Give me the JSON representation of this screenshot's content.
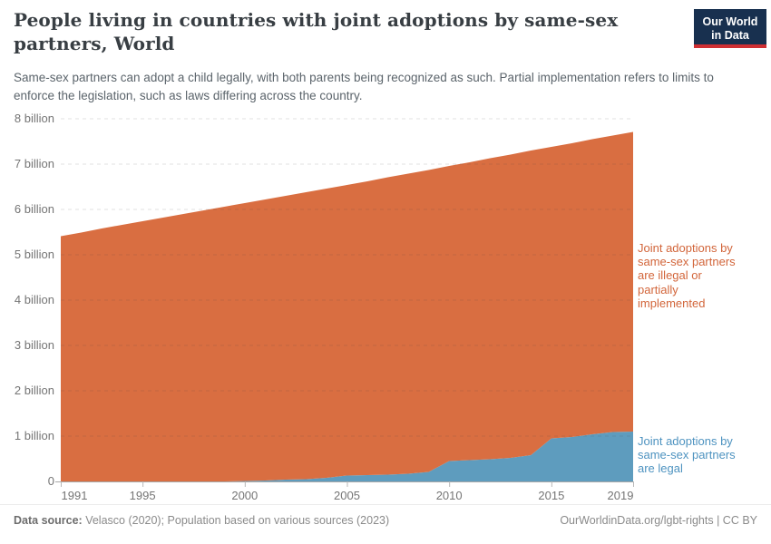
{
  "header": {
    "title": "People living in countries with joint adoptions by same-sex partners, World",
    "subtitle": "Same-sex partners can adopt a child legally, with both parents being recognized as such. Partial implementation refers to limits to enforce the legislation, such as laws differing across the country.",
    "logo": {
      "line1": "Our World",
      "line2": "in Data",
      "bg_color": "#18304f",
      "accent_color": "#cf2f33"
    }
  },
  "chart_data": {
    "type": "area",
    "stacked": true,
    "title": "People living in countries with joint adoptions by same-sex partners, World",
    "unit": "billion people",
    "grid": "horizontal dashed",
    "legend_position": "right-edge annotations",
    "x": [
      1991,
      1992,
      1993,
      1994,
      1995,
      1996,
      1997,
      1998,
      1999,
      2000,
      2001,
      2002,
      2003,
      2004,
      2005,
      2006,
      2007,
      2008,
      2009,
      2010,
      2011,
      2012,
      2013,
      2014,
      2015,
      2016,
      2017,
      2018,
      2019
    ],
    "series": [
      {
        "name": "Joint adoptions by same-sex partners are legal",
        "color": "#5e9cbe",
        "values_billions": [
          0,
          0,
          0,
          0,
          0,
          0,
          0,
          0,
          0,
          0.01,
          0.02,
          0.04,
          0.05,
          0.08,
          0.13,
          0.14,
          0.15,
          0.17,
          0.21,
          0.45,
          0.47,
          0.49,
          0.52,
          0.58,
          0.95,
          0.98,
          1.04,
          1.09,
          1.1
        ]
      },
      {
        "name": "Joint adoptions by same-sex partners are illegal or partially implemented",
        "color": "#d96e41",
        "values_billions": [
          5.41,
          5.49,
          5.58,
          5.66,
          5.74,
          5.82,
          5.9,
          5.98,
          6.06,
          6.13,
          6.2,
          6.26,
          6.33,
          6.38,
          6.41,
          6.48,
          6.56,
          6.62,
          6.66,
          6.51,
          6.57,
          6.64,
          6.69,
          6.72,
          6.43,
          6.48,
          6.51,
          6.54,
          6.61
        ]
      }
    ],
    "world_total_billions": [
      5.41,
      5.49,
      5.58,
      5.66,
      5.74,
      5.82,
      5.9,
      5.98,
      6.06,
      6.14,
      6.22,
      6.3,
      6.38,
      6.46,
      6.54,
      6.62,
      6.71,
      6.79,
      6.87,
      6.96,
      7.04,
      7.13,
      7.21,
      7.3,
      7.38,
      7.46,
      7.55,
      7.63,
      7.71
    ],
    "ylim_billions": [
      0,
      8
    ],
    "y_ticks": [
      {
        "value": 0,
        "label": "0"
      },
      {
        "value": 1,
        "label": "1 billion"
      },
      {
        "value": 2,
        "label": "2 billion"
      },
      {
        "value": 3,
        "label": "3 billion"
      },
      {
        "value": 4,
        "label": "4 billion"
      },
      {
        "value": 5,
        "label": "5 billion"
      },
      {
        "value": 6,
        "label": "6 billion"
      },
      {
        "value": 7,
        "label": "7 billion"
      },
      {
        "value": 8,
        "label": "8 billion"
      }
    ],
    "x_ticks": [
      1991,
      1995,
      2000,
      2005,
      2010,
      2015,
      2019
    ]
  },
  "annotations": {
    "illegal": "Joint adoptions by same-sex partners are illegal or partially implemented",
    "illegal_color": "#d2653a",
    "legal": "Joint adoptions by same-sex partners are legal",
    "legal_color": "#4e93c0"
  },
  "footer": {
    "datasource_label": "Data source:",
    "datasource_text": " Velasco (2020); Population based on various sources (2023)",
    "link_text": "OurWorldinData.org/lgbt-rights | CC BY"
  }
}
